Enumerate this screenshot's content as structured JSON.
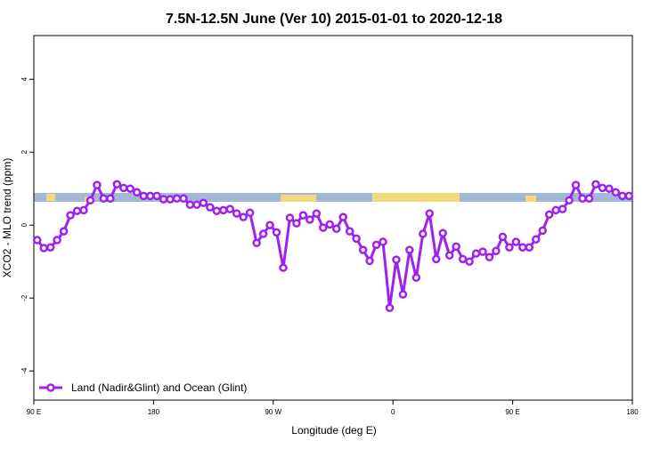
{
  "chart_data": {
    "type": "line",
    "title": "7.5N-12.5N June (Ver 10)   2015-01-01 to 2020-12-18",
    "xlabel": "Longitude (deg E)",
    "ylabel": "XCO2 - MLO trend (ppm)",
    "xlim": [
      90,
      540
    ],
    "ylim": [
      -4.8,
      5.2
    ],
    "xticks": [
      {
        "value": 90,
        "label": "90 E"
      },
      {
        "value": 180,
        "label": "180"
      },
      {
        "value": 270,
        "label": "90 W"
      },
      {
        "value": 360,
        "label": "0"
      },
      {
        "value": 450,
        "label": "90 E"
      },
      {
        "value": 540,
        "label": "180"
      }
    ],
    "yticks": [
      -4,
      -2,
      0,
      2,
      4
    ],
    "legend": "bottom-left",
    "x": [
      92.5,
      97.5,
      102.5,
      107.5,
      112.5,
      117.5,
      122.5,
      127.5,
      132.5,
      137.5,
      142.5,
      147.5,
      152.5,
      157.5,
      162.5,
      167.5,
      172.5,
      177.5,
      182.5,
      187.5,
      192.5,
      197.5,
      202.5,
      207.5,
      212.5,
      217.5,
      222.5,
      227.5,
      232.5,
      237.5,
      242.5,
      247.5,
      252.5,
      257.5,
      262.5,
      267.5,
      272.5,
      277.5,
      282.5,
      287.5,
      292.5,
      297.5,
      302.5,
      307.5,
      312.5,
      317.5,
      322.5,
      327.5,
      332.5,
      337.5,
      342.5,
      347.5,
      352.5,
      357.5,
      362.5,
      367.5,
      372.5,
      377.5,
      382.5,
      387.5,
      392.5,
      397.5,
      402.5,
      407.5,
      412.5,
      417.5,
      422.5,
      427.5,
      432.5,
      437.5,
      442.5,
      447.5,
      452.5,
      457.5,
      462.5,
      467.5,
      472.5,
      477.5,
      482.5,
      487.5,
      492.5,
      497.5,
      502.5,
      507.5,
      512.5,
      517.5,
      522.5,
      527.5,
      532.5,
      537.5
    ],
    "series": [
      {
        "name": "Land (Nadir&Glint) and Ocean (Glint)",
        "color": "#a020f0",
        "values": [
          -0.41,
          -0.63,
          -0.61,
          -0.41,
          -0.17,
          0.27,
          0.39,
          0.41,
          0.68,
          1.1,
          0.73,
          0.73,
          1.12,
          1.02,
          1.0,
          0.9,
          0.8,
          0.8,
          0.8,
          0.71,
          0.71,
          0.73,
          0.73,
          0.56,
          0.56,
          0.61,
          0.49,
          0.39,
          0.41,
          0.44,
          0.32,
          0.22,
          0.34,
          -0.49,
          -0.24,
          0,
          -0.2,
          -1.17,
          0.2,
          0.05,
          0.27,
          0.15,
          0.32,
          -0.07,
          0.02,
          -0.1,
          0.22,
          -0.17,
          -0.37,
          -0.68,
          -0.98,
          -0.54,
          -0.46,
          -2.27,
          -0.95,
          -1.9,
          -0.68,
          -1.44,
          -0.24,
          0.32,
          -0.93,
          -0.22,
          -0.83,
          -0.59,
          -0.93,
          -1.0,
          -0.78,
          -0.73,
          -0.88,
          -0.71,
          -0.32,
          -0.61,
          -0.46,
          -0.61,
          -0.61,
          -0.39,
          -0.15,
          0.29,
          0.41,
          0.44,
          0.68,
          1.1,
          0.73,
          0.73,
          1.12,
          1.02,
          1.0,
          0.9,
          0.8,
          0.8
        ]
      }
    ]
  }
}
